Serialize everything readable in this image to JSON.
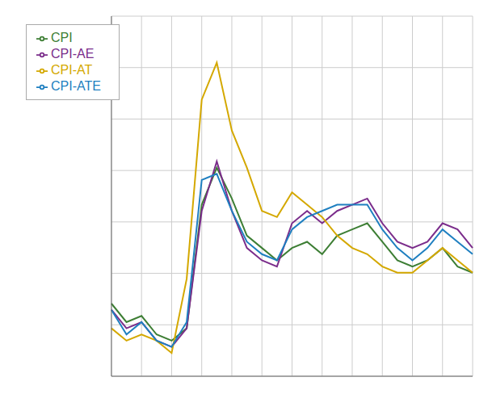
{
  "chart_data": {
    "type": "line",
    "categories": [
      null,
      null,
      null,
      null,
      null,
      null,
      null,
      null,
      null,
      null,
      null,
      null,
      null,
      null,
      null,
      null,
      null,
      null,
      null,
      null,
      null,
      null,
      null,
      null,
      null
    ],
    "series": [
      {
        "name": "CPI",
        "color": "#3d7e34",
        "values": [
          2.2,
          1.9,
          2.0,
          1.7,
          1.6,
          1.8,
          3.8,
          4.4,
          3.9,
          3.3,
          3.1,
          2.9,
          3.1,
          3.2,
          3.0,
          3.3,
          3.4,
          3.5,
          3.2,
          2.9,
          2.8,
          2.9,
          3.1,
          2.8,
          2.7
        ]
      },
      {
        "name": "CPI-AE",
        "color": "#7b2d8b",
        "values": [
          2.1,
          1.8,
          1.9,
          1.6,
          1.5,
          1.8,
          3.7,
          4.5,
          3.7,
          3.1,
          2.9,
          2.8,
          3.5,
          3.7,
          3.5,
          3.7,
          3.8,
          3.9,
          3.5,
          3.2,
          3.1,
          3.2,
          3.5,
          3.4,
          3.1
        ]
      },
      {
        "name": "CPI-AT",
        "color": "#d4a800",
        "values": [
          1.8,
          1.6,
          1.7,
          1.6,
          1.4,
          2.6,
          5.5,
          6.1,
          5.0,
          4.4,
          3.7,
          3.6,
          4.0,
          3.8,
          3.6,
          3.3,
          3.1,
          3.0,
          2.8,
          2.7,
          2.7,
          2.9,
          3.1,
          2.9,
          2.7
        ]
      },
      {
        "name": "CPI-ATE",
        "color": "#1e7fc0",
        "values": [
          2.1,
          1.7,
          1.9,
          1.6,
          1.5,
          1.9,
          4.2,
          4.3,
          3.7,
          3.2,
          3.0,
          2.9,
          3.4,
          3.6,
          3.7,
          3.8,
          3.8,
          3.8,
          3.4,
          3.1,
          2.9,
          3.1,
          3.4,
          3.2,
          3.0
        ]
      }
    ],
    "ylim": [
      1.024,
      6.852
    ],
    "grid": true,
    "legend": "upper left",
    "tick_labels": false
  }
}
